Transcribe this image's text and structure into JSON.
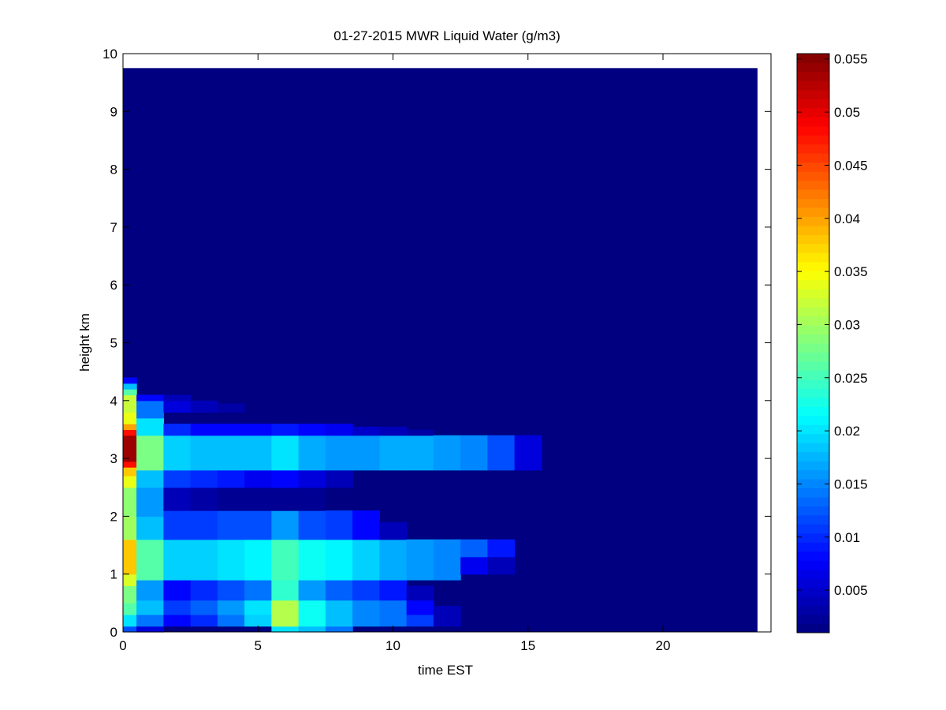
{
  "chart_data": {
    "type": "heatmap",
    "title": "01-27-2015 MWR Liquid Water (g/m3)",
    "xlabel": "time EST",
    "ylabel": "height km",
    "xlim": [
      0,
      24
    ],
    "ylim": [
      0,
      10
    ],
    "xticks": [
      "0",
      "5",
      "10",
      "15",
      "20"
    ],
    "yticks": [
      "0",
      "1",
      "2",
      "3",
      "4",
      "5",
      "6",
      "7",
      "8",
      "9",
      "10"
    ],
    "colorbar": {
      "colormap": "jet",
      "range": [
        0.001,
        0.0555
      ],
      "ticks": [
        "0.005",
        "0.01",
        "0.015",
        "0.02",
        "0.025",
        "0.03",
        "0.035",
        "0.04",
        "0.045",
        "0.05",
        "0.055"
      ]
    },
    "data_extent": {
      "x_end": 23.5,
      "y_end": 9.75
    },
    "background_value": 0.001,
    "columns": [
      {
        "x": [
          0,
          0.5
        ],
        "cells": [
          [
            0,
            0.1,
            0.012
          ],
          [
            0.1,
            0.3,
            0.02
          ],
          [
            0.3,
            0.5,
            0.026
          ],
          [
            0.5,
            0.8,
            0.028
          ],
          [
            0.8,
            1.0,
            0.033
          ],
          [
            1.0,
            1.6,
            0.038
          ],
          [
            1.6,
            2.0,
            0.03
          ],
          [
            2.0,
            2.5,
            0.029
          ],
          [
            2.5,
            2.7,
            0.034
          ],
          [
            2.7,
            2.85,
            0.038
          ],
          [
            2.85,
            2.95,
            0.048
          ],
          [
            2.95,
            3.4,
            0.054
          ],
          [
            3.4,
            3.5,
            0.048
          ],
          [
            3.5,
            3.6,
            0.04
          ],
          [
            3.6,
            3.8,
            0.034
          ],
          [
            3.8,
            4.1,
            0.032
          ],
          [
            4.1,
            4.2,
            0.026
          ],
          [
            4.2,
            4.3,
            0.018
          ],
          [
            4.3,
            4.4,
            0.008
          ]
        ]
      },
      {
        "x": [
          0.5,
          1.5
        ],
        "cells": [
          [
            0,
            0.1,
            0.006
          ],
          [
            0.1,
            0.3,
            0.014
          ],
          [
            0.3,
            0.55,
            0.018
          ],
          [
            0.55,
            0.9,
            0.016
          ],
          [
            0.9,
            1.6,
            0.026
          ],
          [
            1.6,
            2.0,
            0.018
          ],
          [
            2.0,
            2.5,
            0.016
          ],
          [
            2.5,
            2.8,
            0.018
          ],
          [
            2.8,
            3.4,
            0.028
          ],
          [
            3.4,
            3.7,
            0.02
          ],
          [
            3.7,
            4.0,
            0.014
          ],
          [
            4.0,
            4.1,
            0.008
          ]
        ]
      },
      {
        "x": [
          1.5,
          2.5
        ],
        "cells": [
          [
            0.1,
            0.3,
            0.008
          ],
          [
            0.3,
            0.55,
            0.011
          ],
          [
            0.55,
            0.9,
            0.008
          ],
          [
            0.9,
            1.6,
            0.019
          ],
          [
            1.6,
            2.1,
            0.011
          ],
          [
            2.1,
            2.5,
            0.004
          ],
          [
            2.5,
            2.8,
            0.011
          ],
          [
            2.8,
            3.4,
            0.019
          ],
          [
            3.4,
            3.6,
            0.01
          ],
          [
            3.8,
            4.0,
            0.006
          ],
          [
            4.0,
            4.1,
            0.004
          ]
        ]
      },
      {
        "x": [
          2.5,
          3.5
        ],
        "cells": [
          [
            0.1,
            0.3,
            0.01
          ],
          [
            0.3,
            0.55,
            0.013
          ],
          [
            0.55,
            0.9,
            0.01
          ],
          [
            0.9,
            1.6,
            0.019
          ],
          [
            1.6,
            2.1,
            0.011
          ],
          [
            2.1,
            2.5,
            0.003
          ],
          [
            2.5,
            2.8,
            0.01
          ],
          [
            2.8,
            3.4,
            0.018
          ],
          [
            3.4,
            3.6,
            0.008
          ],
          [
            3.8,
            4.0,
            0.004
          ]
        ]
      },
      {
        "x": [
          3.5,
          4.5
        ],
        "cells": [
          [
            0.1,
            0.3,
            0.014
          ],
          [
            0.3,
            0.55,
            0.016
          ],
          [
            0.55,
            0.9,
            0.012
          ],
          [
            0.9,
            1.6,
            0.02
          ],
          [
            1.6,
            2.1,
            0.012
          ],
          [
            2.1,
            2.5,
            0.002
          ],
          [
            2.5,
            2.8,
            0.009
          ],
          [
            2.8,
            3.4,
            0.018
          ],
          [
            3.4,
            3.6,
            0.008
          ],
          [
            3.8,
            3.95,
            0.003
          ]
        ]
      },
      {
        "x": [
          4.5,
          5.5
        ],
        "cells": [
          [
            0.1,
            0.3,
            0.019
          ],
          [
            0.3,
            0.55,
            0.02
          ],
          [
            0.55,
            0.9,
            0.014
          ],
          [
            0.9,
            1.6,
            0.021
          ],
          [
            1.6,
            2.1,
            0.012
          ],
          [
            2.1,
            2.5,
            0.002
          ],
          [
            2.5,
            2.8,
            0.007
          ],
          [
            2.8,
            3.4,
            0.018
          ],
          [
            3.4,
            3.6,
            0.008
          ]
        ]
      },
      {
        "x": [
          5.5,
          6.5
        ],
        "cells": [
          [
            0,
            0.1,
            0.02
          ],
          [
            0.1,
            0.55,
            0.031
          ],
          [
            0.55,
            0.9,
            0.024
          ],
          [
            0.9,
            1.6,
            0.025
          ],
          [
            1.6,
            2.1,
            0.016
          ],
          [
            2.1,
            2.5,
            0.002
          ],
          [
            2.5,
            2.8,
            0.008
          ],
          [
            2.8,
            3.4,
            0.02
          ],
          [
            3.4,
            3.6,
            0.009
          ]
        ]
      },
      {
        "x": [
          6.5,
          7.5
        ],
        "cells": [
          [
            0,
            0.1,
            0.018
          ],
          [
            0.1,
            0.55,
            0.022
          ],
          [
            0.55,
            0.9,
            0.016
          ],
          [
            0.9,
            1.6,
            0.022
          ],
          [
            1.6,
            2.1,
            0.012
          ],
          [
            2.1,
            2.5,
            0.002
          ],
          [
            2.5,
            2.8,
            0.006
          ],
          [
            2.8,
            3.4,
            0.017
          ],
          [
            3.4,
            3.6,
            0.008
          ]
        ]
      },
      {
        "x": [
          7.5,
          8.5
        ],
        "cells": [
          [
            0,
            0.1,
            0.014
          ],
          [
            0.1,
            0.55,
            0.018
          ],
          [
            0.55,
            0.9,
            0.013
          ],
          [
            0.9,
            1.6,
            0.021
          ],
          [
            1.6,
            2.1,
            0.011
          ],
          [
            2.5,
            2.8,
            0.004
          ],
          [
            2.8,
            3.4,
            0.016
          ],
          [
            3.4,
            3.6,
            0.007
          ]
        ]
      },
      {
        "x": [
          8.5,
          9.5
        ],
        "cells": [
          [
            0.1,
            0.55,
            0.015
          ],
          [
            0.55,
            0.9,
            0.011
          ],
          [
            0.9,
            1.6,
            0.019
          ],
          [
            1.6,
            2.1,
            0.008
          ],
          [
            2.8,
            3.4,
            0.016
          ],
          [
            3.4,
            3.55,
            0.005
          ]
        ]
      },
      {
        "x": [
          9.5,
          10.5
        ],
        "cells": [
          [
            0.1,
            0.55,
            0.014
          ],
          [
            0.55,
            0.9,
            0.009
          ],
          [
            0.9,
            1.6,
            0.017
          ],
          [
            1.6,
            1.9,
            0.004
          ],
          [
            2.8,
            3.4,
            0.017
          ],
          [
            3.4,
            3.55,
            0.004
          ]
        ]
      },
      {
        "x": [
          10.5,
          11.5
        ],
        "cells": [
          [
            0.1,
            0.3,
            0.011
          ],
          [
            0.3,
            0.55,
            0.008
          ],
          [
            0.55,
            0.8,
            0.004
          ],
          [
            0.9,
            1.6,
            0.016
          ],
          [
            2.8,
            3.4,
            0.017
          ],
          [
            3.4,
            3.5,
            0.003
          ]
        ]
      },
      {
        "x": [
          11.5,
          12.5
        ],
        "cells": [
          [
            0.1,
            0.45,
            0.004
          ],
          [
            0.9,
            1.6,
            0.015
          ],
          [
            2.8,
            3.4,
            0.016
          ]
        ]
      },
      {
        "x": [
          12.5,
          13.5
        ],
        "cells": [
          [
            1.0,
            1.3,
            0.007
          ],
          [
            1.3,
            1.6,
            0.013
          ],
          [
            2.8,
            3.4,
            0.015
          ]
        ]
      },
      {
        "x": [
          13.5,
          14.5
        ],
        "cells": [
          [
            1.0,
            1.3,
            0.004
          ],
          [
            1.3,
            1.6,
            0.009
          ],
          [
            2.8,
            3.4,
            0.012
          ]
        ]
      },
      {
        "x": [
          14.5,
          15.5
        ],
        "cells": [
          [
            2.8,
            3.4,
            0.006
          ]
        ]
      }
    ]
  }
}
